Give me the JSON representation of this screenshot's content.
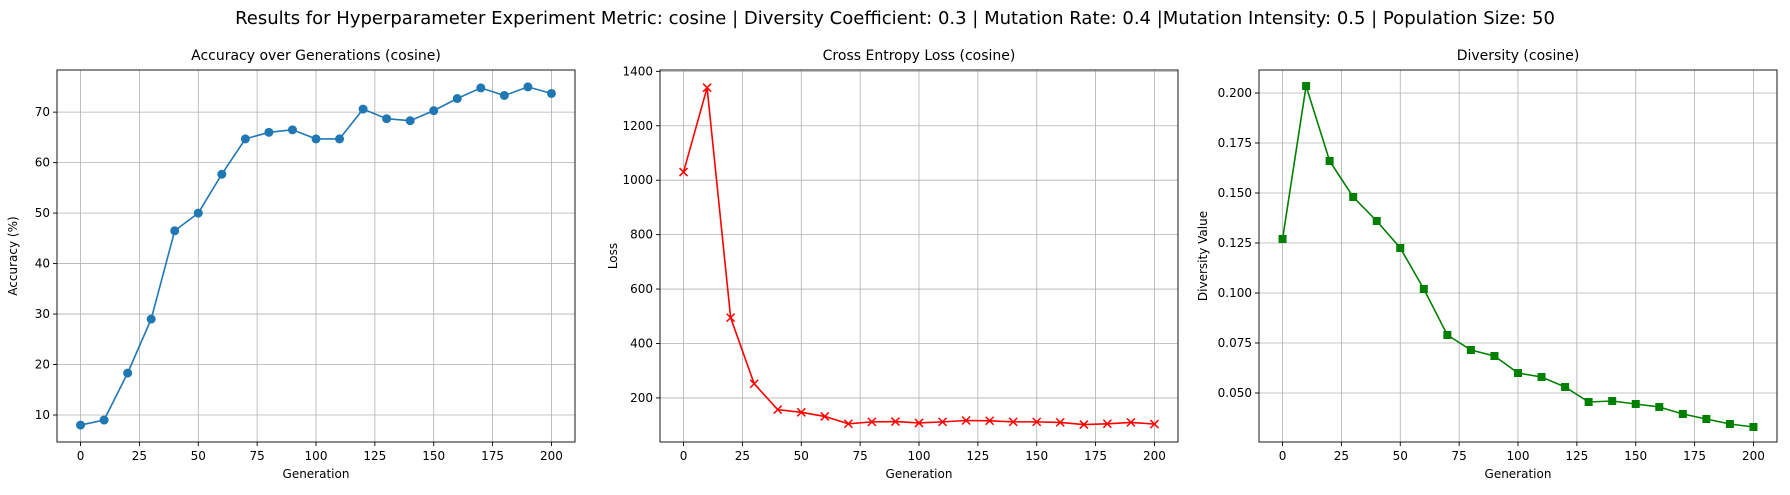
{
  "suptitle": "Results for Hyperparameter Experiment Metric: cosine | Diversity Coefficient: 0.3 | Mutation Rate: 0.4 |Mutation Intensity: 0.5 | Population Size: 50",
  "chart_data": [
    {
      "type": "line",
      "title": "Accuracy over Generations (cosine)",
      "xlabel": "Generation",
      "ylabel": "Accuracy (%)",
      "xlim": [
        -10,
        210
      ],
      "ylim": [
        4.65,
        78.35
      ],
      "xticks": [
        0,
        25,
        50,
        75,
        100,
        125,
        150,
        175,
        200
      ],
      "yticks": [
        10,
        20,
        30,
        40,
        50,
        60,
        70
      ],
      "ytick_labels": [
        "10",
        "20",
        "30",
        "40",
        "50",
        "60",
        "70"
      ],
      "grid": true,
      "color": "#1f77b4",
      "marker": "circle",
      "series": [
        {
          "x": [
            0,
            10,
            20,
            30,
            40,
            50,
            60,
            70,
            80,
            90,
            100,
            110,
            120,
            130,
            140,
            150,
            160,
            170,
            180,
            190,
            200
          ],
          "values": [
            8.0,
            9.0,
            18.3,
            29.0,
            46.5,
            50.0,
            57.7,
            64.7,
            66.0,
            66.5,
            64.7,
            64.7,
            70.6,
            68.7,
            68.3,
            70.3,
            72.7,
            74.8,
            73.3,
            75.0,
            73.7
          ]
        }
      ]
    },
    {
      "type": "line",
      "title": "Cross Entropy Loss (cosine)",
      "xlabel": "Generation",
      "ylabel": "Loss",
      "xlim": [
        -10,
        210
      ],
      "ylim": [
        38,
        1405
      ],
      "xticks": [
        0,
        25,
        50,
        75,
        100,
        125,
        150,
        175,
        200
      ],
      "yticks": [
        200,
        400,
        600,
        800,
        1000,
        1200,
        1400
      ],
      "ytick_labels": [
        "200",
        "400",
        "600",
        "800",
        "1000",
        "1200",
        "1400"
      ],
      "grid": true,
      "color": "#ff0000",
      "marker": "x",
      "series": [
        {
          "x": [
            0,
            10,
            20,
            30,
            40,
            50,
            60,
            70,
            80,
            90,
            100,
            110,
            120,
            130,
            140,
            150,
            160,
            170,
            180,
            190,
            200
          ],
          "values": [
            1030,
            1340,
            495,
            252,
            157,
            147,
            132,
            105,
            112,
            113,
            108,
            112,
            117,
            116,
            112,
            112,
            110,
            102,
            105,
            110,
            104
          ]
        }
      ]
    },
    {
      "type": "line",
      "title": "Diversity (cosine)",
      "xlabel": "Generation",
      "ylabel": "Diversity Value",
      "xlim": [
        -10,
        210
      ],
      "ylim": [
        0.0255,
        0.2115
      ],
      "xticks": [
        0,
        25,
        50,
        75,
        100,
        125,
        150,
        175,
        200
      ],
      "yticks": [
        0.05,
        0.075,
        0.1,
        0.125,
        0.15,
        0.175,
        0.2
      ],
      "ytick_labels": [
        "0.050",
        "0.075",
        "0.100",
        "0.125",
        "0.150",
        "0.175",
        "0.200"
      ],
      "grid": true,
      "color": "#008000",
      "marker": "square",
      "series": [
        {
          "x": [
            0,
            10,
            20,
            30,
            40,
            50,
            60,
            70,
            80,
            90,
            100,
            110,
            120,
            130,
            140,
            150,
            160,
            170,
            180,
            190,
            200
          ],
          "values": [
            0.127,
            0.2035,
            0.166,
            0.148,
            0.136,
            0.1225,
            0.102,
            0.079,
            0.0715,
            0.0685,
            0.06,
            0.058,
            0.053,
            0.0455,
            0.046,
            0.0445,
            0.043,
            0.0395,
            0.037,
            0.0345,
            0.033
          ]
        }
      ]
    }
  ]
}
